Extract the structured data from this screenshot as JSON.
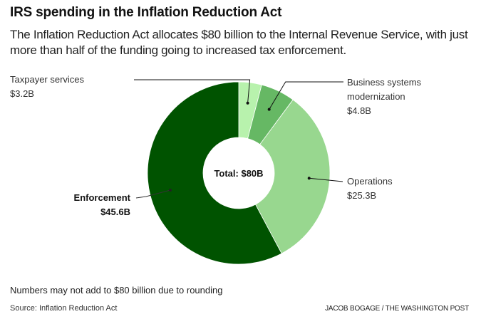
{
  "header": {
    "title": "IRS spending in the Inflation Reduction Act",
    "subtitle": "The Inflation Reduction Act allocates $80 billion to the Internal Revenue Service, with just more than half of the funding going to increased tax enforcement."
  },
  "chart_data": {
    "type": "pie",
    "variant": "donut",
    "title": "IRS spending in the Inflation Reduction Act",
    "center_label": "Total: $80B",
    "unit": "billion USD",
    "slices": [
      {
        "name": "Taxpayer services",
        "value": 3.2,
        "label": "$3.2B",
        "color": "#b8f2ad"
      },
      {
        "name": "Business systems modernization",
        "value": 4.8,
        "label": "$4.8B",
        "color": "#66b864"
      },
      {
        "name": "Operations",
        "value": 25.3,
        "label": "$25.3B",
        "color": "#98d78f"
      },
      {
        "name": "Enforcement",
        "value": 45.6,
        "label": "$45.6B",
        "color": "#005300"
      }
    ],
    "start_angle": "top, clockwise"
  },
  "labels": {
    "taxpayer": {
      "line1": "Taxpayer services",
      "value": "$3.2B"
    },
    "business": {
      "line1": "Business systems",
      "line2": "modernization",
      "value": "$4.8B"
    },
    "operations": {
      "line1": "Operations",
      "value": "$25.3B"
    },
    "enforcement": {
      "line1": "Enforcement",
      "value": "$45.6B"
    }
  },
  "footer": {
    "note": "Numbers may not add to $80 billion due to rounding",
    "source": "Source: Inflation Reduction Act",
    "credit": "JACOB BOGAGE / THE WASHINGTON POST"
  }
}
